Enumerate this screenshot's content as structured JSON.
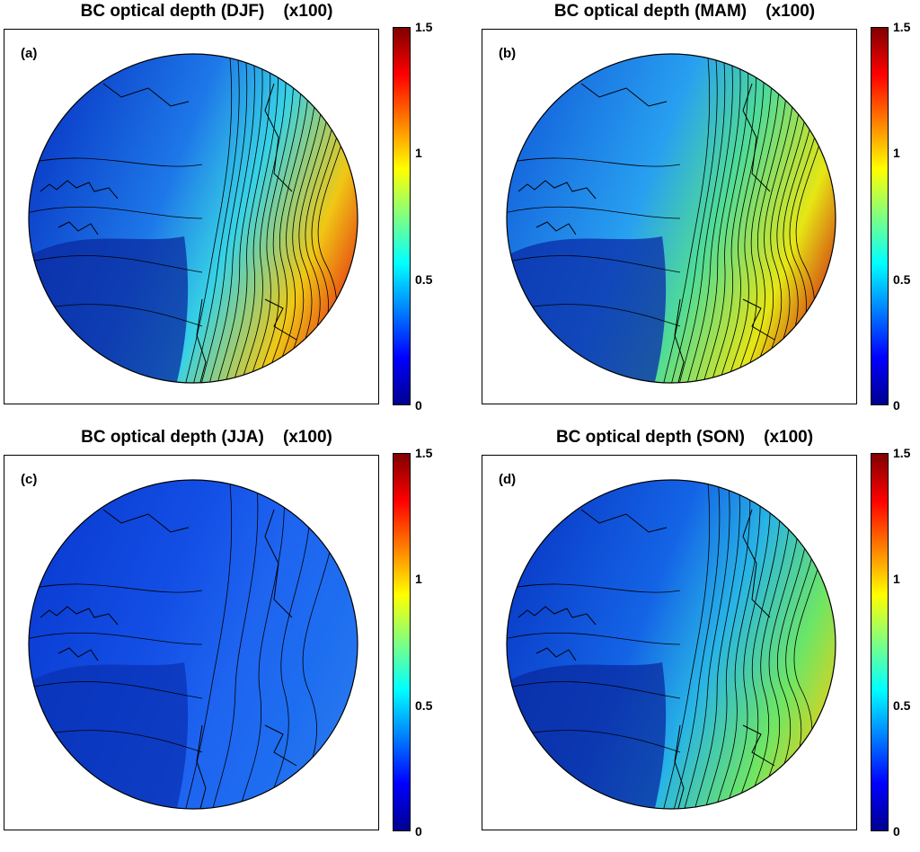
{
  "colorbar": {
    "colors": [
      "#00008f",
      "#0000ff",
      "#0080ff",
      "#00ffff",
      "#80ff80",
      "#ffff00",
      "#ff8000",
      "#ff0000",
      "#800000"
    ],
    "ticks": [
      "1.5",
      "1",
      "0.5",
      "0"
    ]
  },
  "panels": [
    {
      "id": "djf",
      "label": "(a)",
      "title": "BC optical depth (DJF)    (x100)",
      "base": "#1e78e8",
      "c1": "#0a3cc8",
      "c2": "#0a2aa0",
      "accent": "#37d2e6",
      "hot": "#e63c14",
      "warm": "#f0c814",
      "intensity": 3
    },
    {
      "id": "mam",
      "label": "(b)",
      "title": "BC optical depth (MAM)    (x100)",
      "base": "#28a0f0",
      "c1": "#1464dc",
      "c2": "#0a2aa8",
      "accent": "#50dc96",
      "hot": "#d23c14",
      "warm": "#e6e614",
      "intensity": 3
    },
    {
      "id": "jja",
      "label": "(c)",
      "title": "BC optical depth (JJA)    (x100)",
      "base": "#1450e6",
      "c1": "#0a3cd2",
      "c2": "#0a32b4",
      "accent": "#1e64f0",
      "hot": "#2878f0",
      "warm": "#1e6ef0",
      "intensity": 0
    },
    {
      "id": "son",
      "label": "(d)",
      "title": "BC optical depth (SON)    (x100)",
      "base": "#1464e6",
      "c1": "#0a3cc8",
      "c2": "#0a2aa0",
      "accent": "#28b4e6",
      "hot": "#dcd21e",
      "warm": "#6ee664",
      "intensity": 2
    }
  ]
}
